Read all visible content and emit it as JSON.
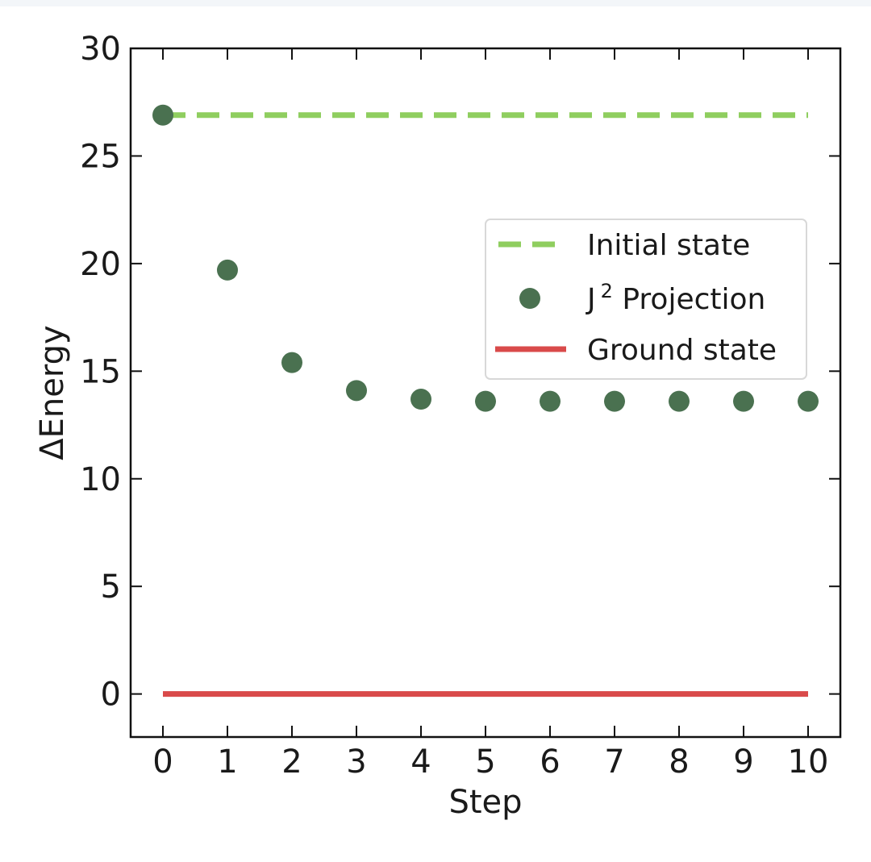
{
  "chart_data": {
    "type": "scatter",
    "title": "",
    "xlabel": "Step",
    "ylabel": "ΔEnergy",
    "x_ticks": [
      "0",
      "1",
      "2",
      "3",
      "4",
      "5",
      "6",
      "7",
      "8",
      "9",
      "10"
    ],
    "y_ticks": [
      "0",
      "5",
      "10",
      "15",
      "20",
      "25",
      "30"
    ],
    "xlim": [
      -0.5,
      10.5
    ],
    "ylim": [
      -2,
      30
    ],
    "grid": false,
    "legend_position": "right",
    "series": [
      {
        "name": "Initial state",
        "name_base": "Initial state",
        "kind": "dashed-line",
        "color": "#8fce5f",
        "x": [
          0,
          10
        ],
        "values": [
          26.9,
          26.9
        ]
      },
      {
        "name": "J² Projection",
        "name_base": "J",
        "name_sup": "2",
        "name_rest": " Projection",
        "kind": "markers",
        "color": "#4a7150",
        "x": [
          0,
          1,
          2,
          3,
          4,
          5,
          6,
          7,
          8,
          9,
          10
        ],
        "values": [
          26.9,
          19.7,
          15.4,
          14.1,
          13.7,
          13.6,
          13.6,
          13.6,
          13.6,
          13.6,
          13.6
        ]
      },
      {
        "name": "Ground state",
        "name_base": "Ground state",
        "kind": "solid-line",
        "color": "#d94a4a",
        "x": [
          0,
          10
        ],
        "values": [
          0,
          0
        ]
      }
    ]
  }
}
